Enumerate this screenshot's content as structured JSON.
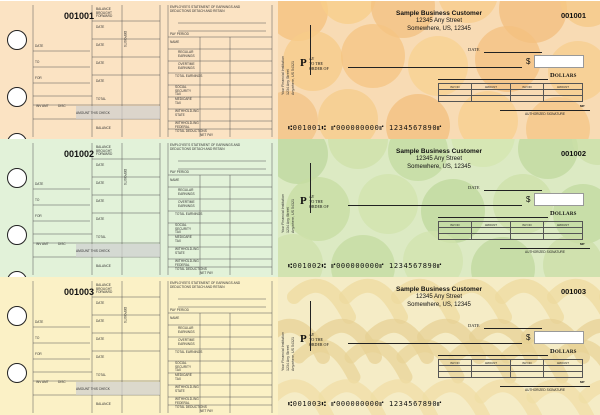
{
  "checks": [
    {
      "number": "001001",
      "theme": "oranges",
      "stub_color": "#fbe3c3",
      "micr": "⑆001001⑆ ⑈000000000⑈ 1234567890⑈"
    },
    {
      "number": "001002",
      "theme": "apples",
      "stub_color": "#e2f2d9",
      "micr": "⑆001002⑆ ⑈000000000⑈ 1234567890⑈"
    },
    {
      "number": "001003",
      "theme": "bananas",
      "stub_color": "#fbf1c6",
      "micr": "⑆001003⑆ ⑈000000000⑈ 1234567890⑈"
    }
  ],
  "customer": {
    "name": "Sample Business Customer",
    "street": "12345 Any Street",
    "city": "Somewhere, US, 12345"
  },
  "bank": {
    "line1": "Your Financial Institution",
    "line2": "1234 Any Street",
    "line3": "Anywhere, US 54321"
  },
  "labels": {
    "date": "DATE",
    "pay_to": "AY\nTO THE\nORDER OF",
    "pay_letter": "P",
    "dollar_sign": "$",
    "dollars": "Dollars",
    "inv_no": "INV NO",
    "amount": "AMOUNT",
    "mp": "MP",
    "authorized_signature": "AUTHORIZED SIGNATURE",
    "stub_balance_forward": "BALANCE BROUGHT FORWARD",
    "stub_date": "DATE",
    "stub_total": "TOTAL",
    "stub_amount_this_check": "AMOUNT THIS CHECK",
    "stub_balance": "BALANCE",
    "stub_deposits": "DEPOSITS",
    "stub_statement": "EMPLOYEE'S STATEMENT OF EARNINGS AND DEDUCTIONS DETACH AND RETAIN",
    "stub_pay_period": "PAY PERIOD",
    "stub_name": "NAME",
    "stub_regular": "REGULAR EARNINGS",
    "stub_overtime": "OVERTIME EARNINGS",
    "stub_total_earnings": "TOTAL EARNINGS",
    "stub_social_security": "SOCIAL SECURITY TAX",
    "stub_medicare": "MEDICARE TAX",
    "stub_withhold_state": "WITHHOLD-ING STATE",
    "stub_withhold_federal": "WITHHOLD-ING FEDERAL",
    "stub_total_deductions": "TOTAL DEDUCTIONS",
    "stub_net_pay": "NET PAY",
    "stub_inv_amt": "INV AMT",
    "stub_disc": "DISC",
    "stub_date_s": "DATE",
    "stub_to": "TO",
    "stub_for": "FOR"
  }
}
